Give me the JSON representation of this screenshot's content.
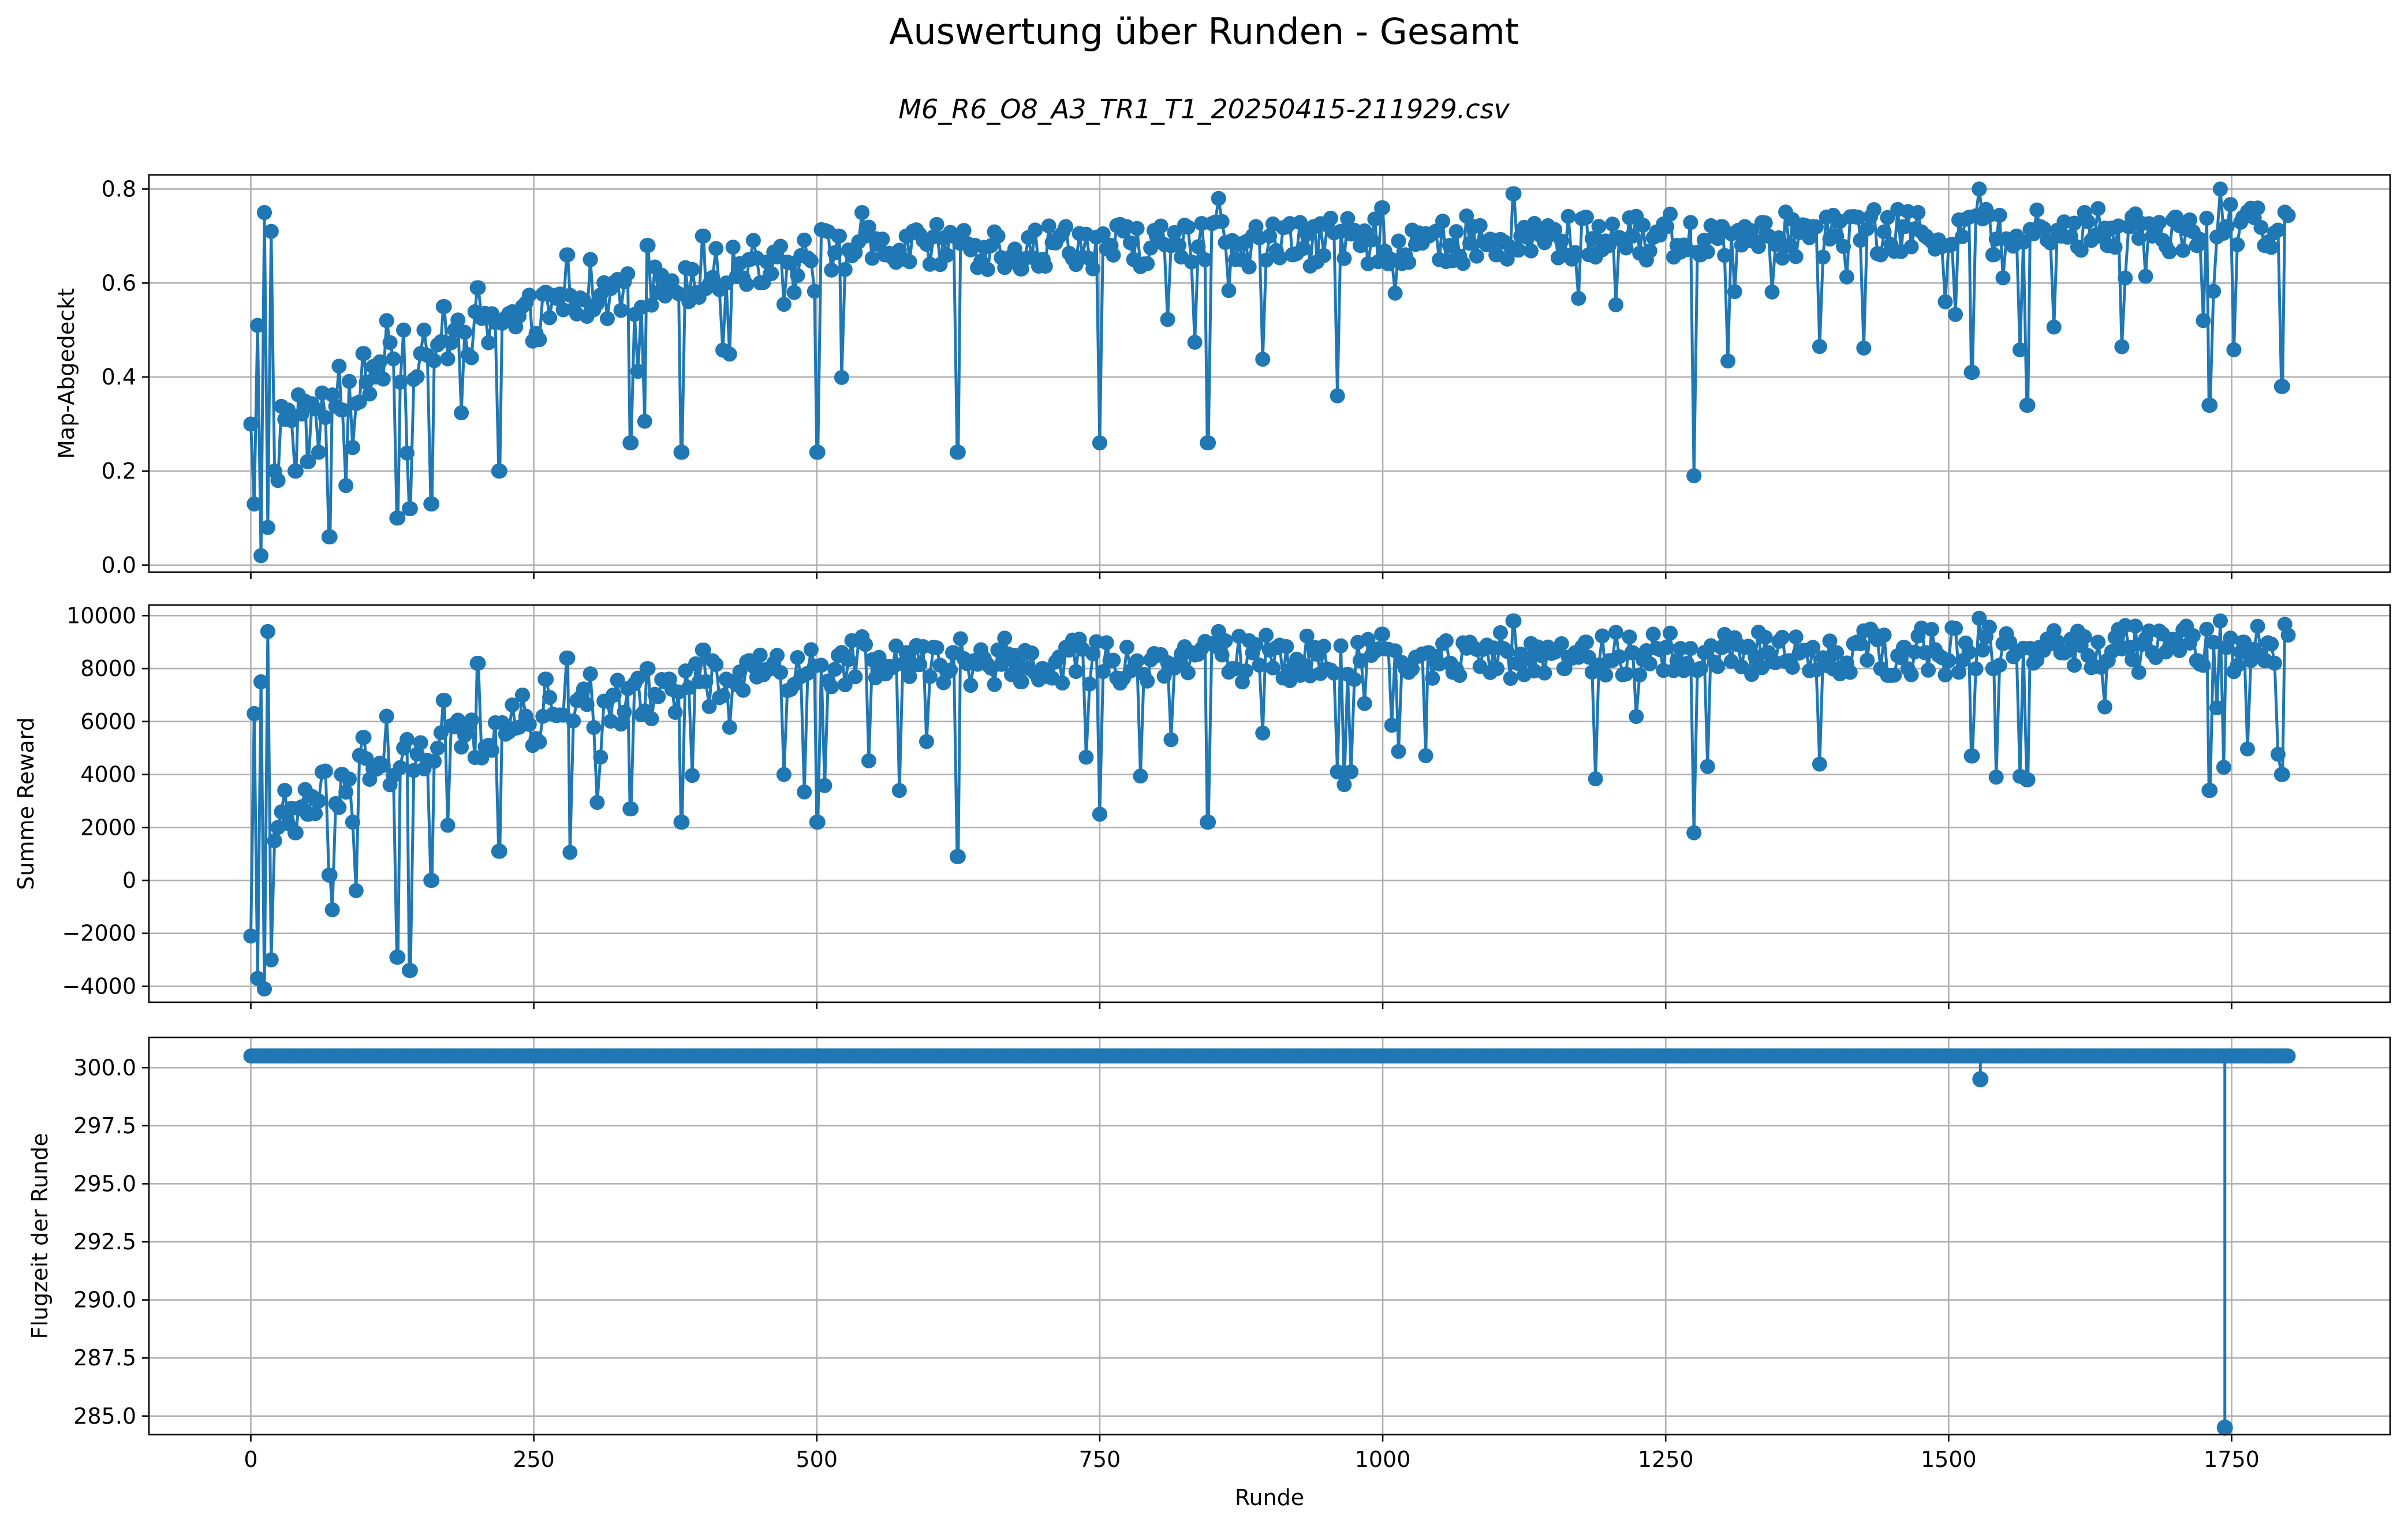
{
  "figure": {
    "title": "Auswertung über Runden - Gesamt",
    "subtitle": "M6_R6_O8_A3_TR1_T1_20250415-211929.csv"
  },
  "colors": {
    "series": "#1f77b4",
    "grid": "#b0b0b0",
    "axis": "#000000"
  },
  "chart_data": [
    {
      "type": "line",
      "marker": "circle",
      "ylabel": "Map-Abgedeckt",
      "xlabel": "",
      "xlim": [
        -90,
        1890
      ],
      "ylim": [
        -0.015,
        0.83
      ],
      "xticks": [
        0,
        250,
        500,
        750,
        1000,
        1250,
        1500,
        1750
      ],
      "xticklabels": [
        "",
        "",
        "",
        "",
        "",
        "",
        "",
        ""
      ],
      "yticks": [
        0.0,
        0.2,
        0.4,
        0.6,
        0.8
      ],
      "yticklabels": [
        "0.0",
        "0.2",
        "0.4",
        "0.6",
        "0.8"
      ],
      "grid": true,
      "series": [
        {
          "x": [
            0,
            3,
            6,
            9,
            12,
            15,
            18,
            21,
            24,
            30,
            40,
            50,
            60,
            70,
            80,
            90,
            100,
            110,
            120,
            130,
            135,
            140,
            150,
            160,
            170,
            180,
            200,
            220,
            240,
            260,
            280,
            300,
            320,
            335,
            350,
            370,
            380,
            400,
            420,
            440,
            460,
            480,
            500,
            520,
            540,
            560,
            580,
            600,
            620,
            625,
            640,
            660,
            680,
            700,
            720,
            750,
            760,
            780,
            800,
            820,
            845,
            855,
            870,
            900,
            920,
            940,
            960,
            980,
            1000,
            1020,
            1040,
            1060,
            1080,
            1100,
            1115,
            1120,
            1140,
            1160,
            1180,
            1200,
            1220,
            1250,
            1260,
            1275,
            1280,
            1300,
            1320,
            1340,
            1360,
            1380,
            1400,
            1420,
            1440,
            1460,
            1480,
            1500,
            1520,
            1527,
            1540,
            1560,
            1570,
            1580,
            1600,
            1620,
            1640,
            1660,
            1680,
            1700,
            1720,
            1730,
            1740,
            1745,
            1760,
            1780,
            1795
          ],
          "y": [
            0.3,
            0.13,
            0.51,
            0.02,
            0.75,
            0.08,
            0.71,
            0.2,
            0.18,
            0.31,
            0.2,
            0.22,
            0.24,
            0.06,
            0.33,
            0.25,
            0.45,
            0.4,
            0.52,
            0.1,
            0.5,
            0.12,
            0.45,
            0.13,
            0.55,
            0.5,
            0.59,
            0.2,
            0.55,
            0.58,
            0.66,
            0.65,
            0.6,
            0.26,
            0.68,
            0.6,
            0.24,
            0.7,
            0.6,
            0.65,
            0.62,
            0.58,
            0.24,
            0.7,
            0.75,
            0.66,
            0.7,
            0.64,
            0.7,
            0.24,
            0.68,
            0.7,
            0.63,
            0.65,
            0.72,
            0.26,
            0.68,
            0.65,
            0.7,
            0.68,
            0.26,
            0.78,
            0.65,
            0.7,
            0.66,
            0.72,
            0.36,
            0.68,
            0.76,
            0.66,
            0.7,
            0.68,
            0.72,
            0.66,
            0.79,
            0.67,
            0.7,
            0.66,
            0.74,
            0.68,
            0.7,
            0.72,
            0.68,
            0.19,
            0.66,
            0.72,
            0.72,
            0.7,
            0.68,
            0.72,
            0.7,
            0.74,
            0.66,
            0.72,
            0.7,
            0.68,
            0.41,
            0.8,
            0.66,
            0.7,
            0.34,
            0.72,
            0.7,
            0.75,
            0.68,
            0.72,
            0.7,
            0.74,
            0.68,
            0.34,
            0.8,
            0.72,
            0.74,
            0.68,
            0.38
          ]
        }
      ]
    },
    {
      "type": "line",
      "marker": "circle",
      "ylabel": "Summe Reward",
      "xlabel": "",
      "xlim": [
        -90,
        1890
      ],
      "ylim": [
        -4600,
        10400
      ],
      "xticks": [
        0,
        250,
        500,
        750,
        1000,
        1250,
        1500,
        1750
      ],
      "xticklabels": [
        "",
        "",
        "",
        "",
        "",
        "",
        "",
        ""
      ],
      "yticks": [
        -4000,
        -2000,
        0,
        2000,
        4000,
        6000,
        8000,
        10000
      ],
      "yticklabels": [
        "−4000",
        "−2000",
        "0",
        "2000",
        "4000",
        "6000",
        "8000",
        "10000"
      ],
      "grid": true,
      "series": [
        {
          "x": [
            0,
            3,
            6,
            9,
            12,
            15,
            18,
            21,
            24,
            30,
            40,
            50,
            60,
            70,
            80,
            90,
            100,
            110,
            120,
            130,
            135,
            140,
            150,
            160,
            170,
            180,
            200,
            220,
            240,
            260,
            280,
            300,
            320,
            335,
            350,
            370,
            380,
            400,
            420,
            440,
            460,
            480,
            500,
            520,
            540,
            560,
            580,
            600,
            620,
            625,
            640,
            660,
            680,
            700,
            720,
            750,
            760,
            780,
            800,
            820,
            845,
            855,
            870,
            900,
            920,
            940,
            960,
            980,
            1000,
            1020,
            1040,
            1060,
            1080,
            1100,
            1115,
            1120,
            1140,
            1160,
            1180,
            1200,
            1220,
            1250,
            1260,
            1275,
            1280,
            1300,
            1320,
            1340,
            1360,
            1380,
            1400,
            1420,
            1440,
            1460,
            1480,
            1500,
            1520,
            1527,
            1540,
            1560,
            1570,
            1580,
            1600,
            1620,
            1640,
            1660,
            1680,
            1700,
            1720,
            1730,
            1740,
            1745,
            1760,
            1780,
            1795
          ],
          "y": [
            -2100,
            6300,
            -3700,
            7500,
            -4100,
            9400,
            -3000,
            1500,
            2000,
            3400,
            1800,
            2500,
            3000,
            200,
            4000,
            2200,
            5400,
            4200,
            6200,
            -2900,
            5000,
            -3400,
            5200,
            0,
            6800,
            5800,
            8200,
            1100,
            7000,
            7600,
            8400,
            7800,
            7000,
            2700,
            8000,
            7600,
            2200,
            8700,
            7600,
            8300,
            8000,
            7400,
            2200,
            8500,
            9200,
            7800,
            8600,
            7700,
            8600,
            900,
            8300,
            8700,
            7500,
            8000,
            8800,
            2500,
            8300,
            8000,
            8500,
            8200,
            2200,
            9400,
            8000,
            8700,
            8000,
            8800,
            4100,
            8300,
            9300,
            8000,
            8600,
            8200,
            8800,
            8000,
            9800,
            8200,
            8500,
            8000,
            9000,
            8300,
            8600,
            8800,
            8300,
            1800,
            8000,
            8800,
            8800,
            8600,
            8300,
            8800,
            8600,
            9000,
            8000,
            8800,
            8600,
            8300,
            4700,
            9900,
            8000,
            8600,
            3800,
            8800,
            8600,
            9200,
            8300,
            8800,
            8600,
            9000,
            8300,
            3400,
            9800,
            8800,
            9000,
            8300,
            4000
          ]
        }
      ]
    },
    {
      "type": "line",
      "marker": "circle",
      "ylabel": "Flugzeit der Runde",
      "xlabel": "Runde",
      "xlim": [
        -90,
        1890
      ],
      "ylim": [
        284.2,
        301.3
      ],
      "xticks": [
        0,
        250,
        500,
        750,
        1000,
        1250,
        1500,
        1750
      ],
      "xticklabels": [
        "0",
        "250",
        "500",
        "750",
        "1000",
        "1250",
        "1500",
        "1750"
      ],
      "yticks": [
        285.0,
        287.5,
        290.0,
        292.5,
        295.0,
        297.5,
        300.0
      ],
      "yticklabels": [
        "285.0",
        "287.5",
        "290.0",
        "292.5",
        "295.0",
        "297.5",
        "300.0"
      ],
      "grid": true,
      "series": [
        {
          "x": [
            0,
            1527,
            1528,
            1743,
            1744,
            1800
          ],
          "y": [
            300.5,
            300.5,
            299.5,
            300.5,
            284.5,
            300.5
          ],
          "constant_y": 300.5,
          "x_range": [
            0,
            1800
          ]
        }
      ]
    }
  ]
}
